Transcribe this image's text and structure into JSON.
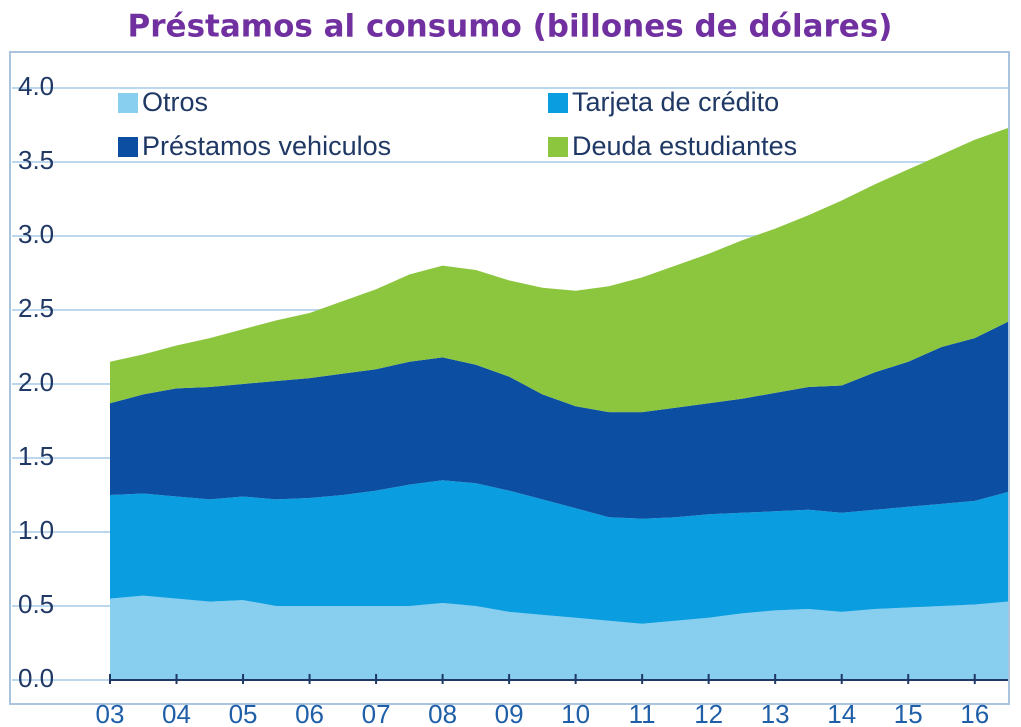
{
  "chart_data": {
    "type": "stacked_area",
    "title": "Préstamos al consumo (billones de dólares)",
    "x": [
      3,
      3.5,
      4,
      4.5,
      5,
      5.5,
      6,
      6.5,
      7,
      7.5,
      8,
      8.5,
      9,
      9.5,
      10,
      10.5,
      11,
      11.5,
      12,
      12.5,
      13,
      13.5,
      14,
      14.5,
      15,
      15.5,
      16,
      16.5
    ],
    "xlim": [
      3,
      16.5
    ],
    "xticks": [
      {
        "value": 3,
        "label": "03"
      },
      {
        "value": 4,
        "label": "04"
      },
      {
        "value": 5,
        "label": "05"
      },
      {
        "value": 6,
        "label": "06"
      },
      {
        "value": 7,
        "label": "07"
      },
      {
        "value": 8,
        "label": "08"
      },
      {
        "value": 9,
        "label": "09"
      },
      10,
      11,
      12,
      13,
      14,
      15,
      16
    ],
    "ylim": [
      0,
      4
    ],
    "yticks": [
      {
        "value": 0,
        "label": "0.0"
      },
      0.5,
      {
        "value": 1,
        "label": "1.0"
      },
      1.5,
      {
        "value": 2,
        "label": "2.0"
      },
      2.5,
      {
        "value": 3,
        "label": "3.0"
      },
      3.5,
      {
        "value": 4,
        "label": "4.0"
      }
    ],
    "grid": true,
    "legend": "upper left",
    "series": [
      {
        "name": "Otros",
        "color": "#87ceef",
        "values": [
          0.55,
          0.57,
          0.55,
          0.53,
          0.54,
          0.5,
          0.5,
          0.5,
          0.5,
          0.5,
          0.52,
          0.5,
          0.46,
          0.44,
          0.42,
          0.4,
          0.38,
          0.4,
          0.42,
          0.45,
          0.47,
          0.48,
          0.46,
          0.48,
          0.49,
          0.5,
          0.51,
          0.53
        ]
      },
      {
        "name": "Tarjeta de crédito",
        "color": "#0a9ee0",
        "values": [
          0.7,
          0.69,
          0.69,
          0.69,
          0.7,
          0.72,
          0.73,
          0.75,
          0.78,
          0.82,
          0.83,
          0.83,
          0.82,
          0.78,
          0.74,
          0.7,
          0.71,
          0.7,
          0.7,
          0.68,
          0.67,
          0.67,
          0.67,
          0.67,
          0.68,
          0.69,
          0.7,
          0.74
        ]
      },
      {
        "name": "Préstamos vehiculos",
        "color": "#0b4ea2",
        "values": [
          0.62,
          0.67,
          0.73,
          0.76,
          0.76,
          0.8,
          0.81,
          0.82,
          0.82,
          0.83,
          0.83,
          0.8,
          0.77,
          0.71,
          0.69,
          0.71,
          0.72,
          0.74,
          0.75,
          0.77,
          0.8,
          0.83,
          0.86,
          0.93,
          0.98,
          1.06,
          1.1,
          1.15
        ]
      },
      {
        "name": "Deuda estudiantes",
        "color": "#8cc63f",
        "values": [
          0.28,
          0.27,
          0.29,
          0.33,
          0.37,
          0.41,
          0.44,
          0.49,
          0.54,
          0.59,
          0.62,
          0.64,
          0.65,
          0.72,
          0.78,
          0.85,
          0.91,
          0.96,
          1.01,
          1.07,
          1.11,
          1.16,
          1.25,
          1.27,
          1.3,
          1.3,
          1.34,
          1.31
        ]
      }
    ]
  }
}
